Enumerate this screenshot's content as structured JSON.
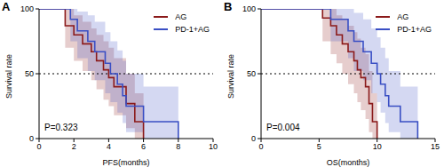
{
  "chart_data": [
    {
      "type": "line",
      "panel": "A",
      "x_label": "PFS(months)",
      "y_label": "Survival rate",
      "xlim": [
        0,
        10
      ],
      "xticks": [
        0,
        2,
        4,
        6,
        8,
        10
      ],
      "ylim": [
        0,
        100
      ],
      "yticks": [
        0,
        50,
        100
      ],
      "reference_y": 50,
      "annotations": [
        "P=0.323"
      ],
      "legend": "upper right",
      "line_style": "step",
      "series": [
        {
          "name": "AG",
          "color": "#8b1a1a",
          "x": [
            0,
            1.5,
            2,
            2.5,
            3,
            3.3,
            3.7,
            4,
            4.3,
            5,
            5.5,
            6
          ],
          "values": [
            100,
            87,
            80,
            73,
            67,
            60,
            53,
            47,
            40,
            27,
            13,
            0
          ],
          "lower": [
            100,
            70,
            60,
            52,
            45,
            38,
            30,
            25,
            18,
            8,
            0,
            0
          ],
          "upper": [
            100,
            100,
            95,
            90,
            85,
            80,
            75,
            70,
            62,
            50,
            35,
            0
          ]
        },
        {
          "name": "PD-1+AG",
          "color": "#3a4fc4",
          "x": [
            0,
            1.8,
            2.2,
            2.8,
            3.2,
            3.8,
            4.1,
            4.5,
            4.8,
            5,
            6,
            8
          ],
          "values": [
            100,
            92,
            83,
            75,
            67,
            58,
            50,
            42,
            33,
            25,
            13,
            0
          ],
          "lower": [
            100,
            75,
            62,
            52,
            45,
            35,
            28,
            20,
            12,
            5,
            0,
            0
          ],
          "upper": [
            100,
            100,
            98,
            95,
            90,
            82,
            75,
            68,
            60,
            50,
            40,
            0
          ]
        }
      ]
    },
    {
      "type": "line",
      "panel": "B",
      "x_label": "OS(months)",
      "y_label": "Survival rate",
      "xlim": [
        0,
        15
      ],
      "xticks": [
        0,
        5,
        10,
        15
      ],
      "ylim": [
        0,
        100
      ],
      "yticks": [
        0,
        50,
        100
      ],
      "reference_y": 50,
      "annotations": [
        "P=0.004"
      ],
      "legend": "upper right",
      "line_style": "step",
      "series": [
        {
          "name": "AG",
          "color": "#8b1a1a",
          "x": [
            0,
            5.3,
            6,
            6.5,
            7,
            7.5,
            8,
            8.3,
            8.6,
            9,
            9.3,
            9.6,
            10
          ],
          "values": [
            100,
            93,
            87,
            80,
            73,
            67,
            60,
            53,
            47,
            40,
            27,
            13,
            0
          ],
          "lower": [
            100,
            75,
            65,
            58,
            50,
            42,
            35,
            28,
            22,
            15,
            5,
            0,
            0
          ],
          "upper": [
            100,
            100,
            100,
            95,
            92,
            87,
            82,
            77,
            70,
            65,
            52,
            35,
            0
          ]
        },
        {
          "name": "PD-1+AG",
          "color": "#3a4fc4",
          "x": [
            0,
            6,
            7.5,
            8,
            8.8,
            9.5,
            10,
            10.3,
            10.7,
            11,
            12,
            13.5
          ],
          "values": [
            100,
            92,
            83,
            75,
            67,
            58,
            50,
            42,
            33,
            25,
            13,
            0
          ],
          "lower": [
            100,
            75,
            62,
            52,
            45,
            35,
            28,
            20,
            12,
            5,
            0,
            0
          ],
          "upper": [
            100,
            100,
            100,
            97,
            92,
            85,
            78,
            70,
            62,
            52,
            40,
            0
          ]
        }
      ]
    }
  ]
}
